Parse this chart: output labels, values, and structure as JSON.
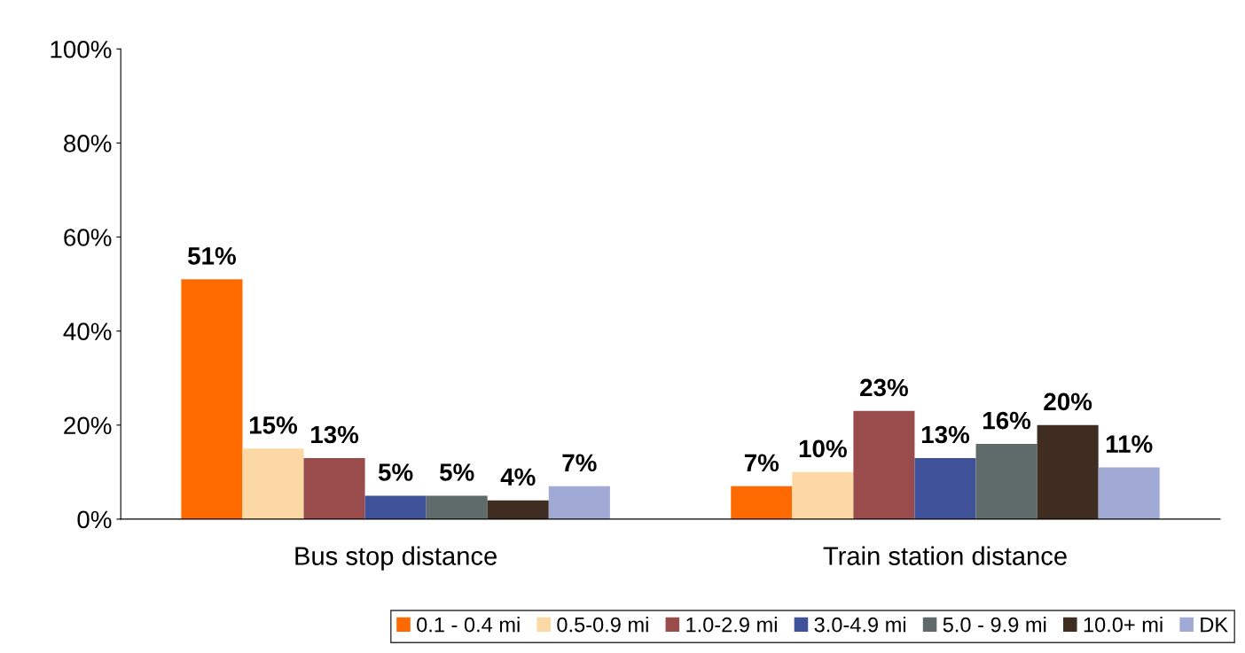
{
  "chart_data": {
    "type": "bar",
    "categories": [
      "Bus stop distance",
      "Train station distance"
    ],
    "series": [
      {
        "name": "0.1 - 0.4 mi",
        "color": "#ff6a00",
        "values": [
          51,
          7
        ],
        "value_labels": [
          "51%",
          "7%"
        ]
      },
      {
        "name": "0.5-0.9 mi",
        "color": "#fcd9a4",
        "values": [
          15,
          10
        ],
        "value_labels": [
          "15%",
          "10%"
        ]
      },
      {
        "name": "1.0-2.9 mi",
        "color": "#9a4b4b",
        "values": [
          13,
          23
        ],
        "value_labels": [
          "13%",
          "23%"
        ]
      },
      {
        "name": "3.0-4.9 mi",
        "color": "#3f5299",
        "values": [
          5,
          13
        ],
        "value_labels": [
          "5%",
          "13%"
        ]
      },
      {
        "name": "5.0 - 9.9 mi",
        "color": "#5f6a6a",
        "values": [
          5,
          16
        ],
        "value_labels": [
          "5%",
          "16%"
        ]
      },
      {
        "name": "10.0+ mi",
        "color": "#3e2d20",
        "values": [
          4,
          20
        ],
        "value_labels": [
          "4%",
          "20%"
        ]
      },
      {
        "name": "DK",
        "color": "#a0aad4",
        "values": [
          7,
          11
        ],
        "value_labels": [
          "7%",
          "11%"
        ]
      }
    ],
    "ylim": [
      0,
      100
    ],
    "yticks": [
      {
        "value": 0,
        "label": "0%"
      },
      {
        "value": 20,
        "label": "20%"
      },
      {
        "value": 40,
        "label": "40%"
      },
      {
        "value": 60,
        "label": "60%"
      },
      {
        "value": 80,
        "label": "80%"
      },
      {
        "value": 100,
        "label": "100%"
      }
    ],
    "legend": "bottom",
    "grid": false
  }
}
